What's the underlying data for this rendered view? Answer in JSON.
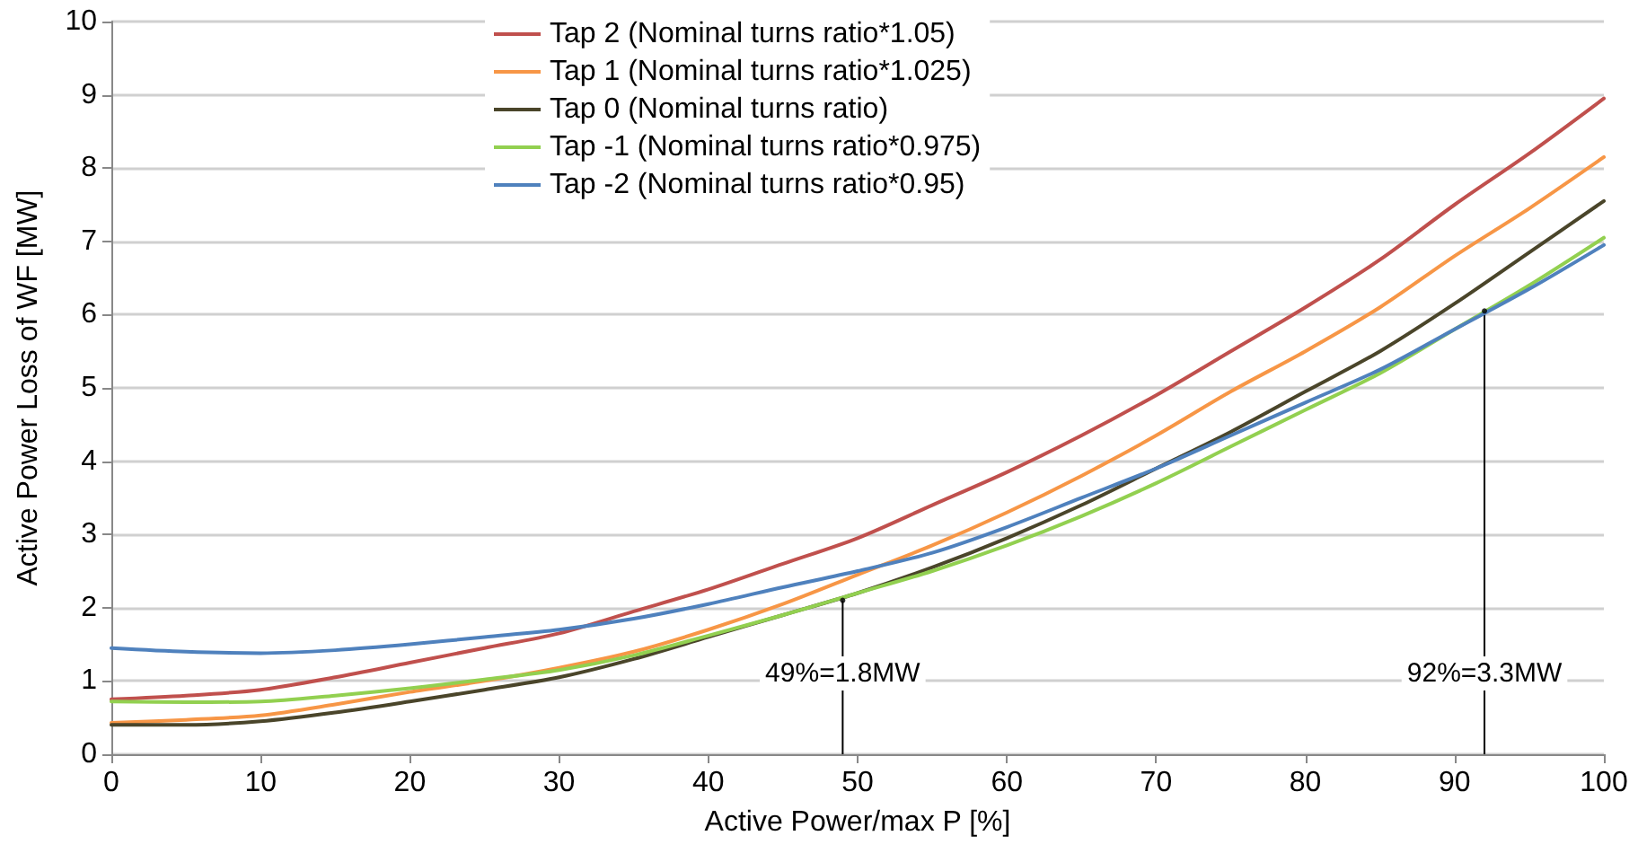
{
  "chart_data": {
    "type": "line",
    "xlabel": "Active Power/max P [%]",
    "ylabel": "Active Power Loss of WF [MW]",
    "x": [
      0,
      5,
      10,
      15,
      20,
      25,
      30,
      35,
      40,
      45,
      50,
      55,
      60,
      65,
      70,
      75,
      80,
      85,
      90,
      95,
      100
    ],
    "series": [
      {
        "name": "Tap 2 (Nominal turns ratio*1.05)",
        "color": "#c0504d",
        "values": [
          0.75,
          0.8,
          0.88,
          1.05,
          1.25,
          1.45,
          1.65,
          1.95,
          2.25,
          2.6,
          2.95,
          3.4,
          3.85,
          4.35,
          4.9,
          5.5,
          6.1,
          6.75,
          7.5,
          8.2,
          8.95
        ]
      },
      {
        "name": "Tap 1 (Nominal turns ratio*1.025)",
        "color": "#f79646",
        "values": [
          0.43,
          0.47,
          0.53,
          0.68,
          0.85,
          1.0,
          1.18,
          1.4,
          1.7,
          2.05,
          2.45,
          2.85,
          3.3,
          3.8,
          4.35,
          4.95,
          5.5,
          6.1,
          6.8,
          7.45,
          8.15
        ]
      },
      {
        "name": "Tap 0 (Nominal turns ratio)",
        "color": "#4a452a",
        "values": [
          0.4,
          0.4,
          0.45,
          0.57,
          0.72,
          0.88,
          1.05,
          1.3,
          1.6,
          1.9,
          2.2,
          2.55,
          2.95,
          3.4,
          3.9,
          4.4,
          4.95,
          5.5,
          6.15,
          6.85,
          7.55
        ]
      },
      {
        "name": "Tap -1 (Nominal turns ratio*0.975)",
        "color": "#92d050",
        "values": [
          0.72,
          0.71,
          0.72,
          0.8,
          0.9,
          1.02,
          1.15,
          1.35,
          1.62,
          1.9,
          2.2,
          2.5,
          2.85,
          3.25,
          3.7,
          4.2,
          4.7,
          5.2,
          5.8,
          6.4,
          7.05
        ]
      },
      {
        "name": "Tap -2 (Nominal turns ratio*0.95)",
        "color": "#4f81bd",
        "values": [
          1.45,
          1.4,
          1.38,
          1.42,
          1.5,
          1.6,
          1.7,
          1.85,
          2.05,
          2.28,
          2.5,
          2.75,
          3.1,
          3.5,
          3.9,
          4.35,
          4.8,
          5.25,
          5.8,
          6.35,
          6.95
        ]
      },
      {
        "type": "lollipop",
        "color": "#000000",
        "x": [
          49,
          92
        ],
        "values": [
          2.1,
          6.05
        ]
      }
    ],
    "annotations": [
      "49%=1.8MW",
      "92%=3.3MW"
    ],
    "xlim": [
      0,
      100
    ],
    "xticks": [
      0,
      10,
      20,
      30,
      40,
      50,
      60,
      70,
      80,
      90,
      100
    ],
    "ylim": [
      0,
      10
    ],
    "yticks": [
      0,
      1,
      2,
      3,
      4,
      5,
      6,
      7,
      8,
      9,
      10
    ],
    "grid": "y",
    "legend": "top",
    "marker": "none",
    "line_style": "solid"
  }
}
